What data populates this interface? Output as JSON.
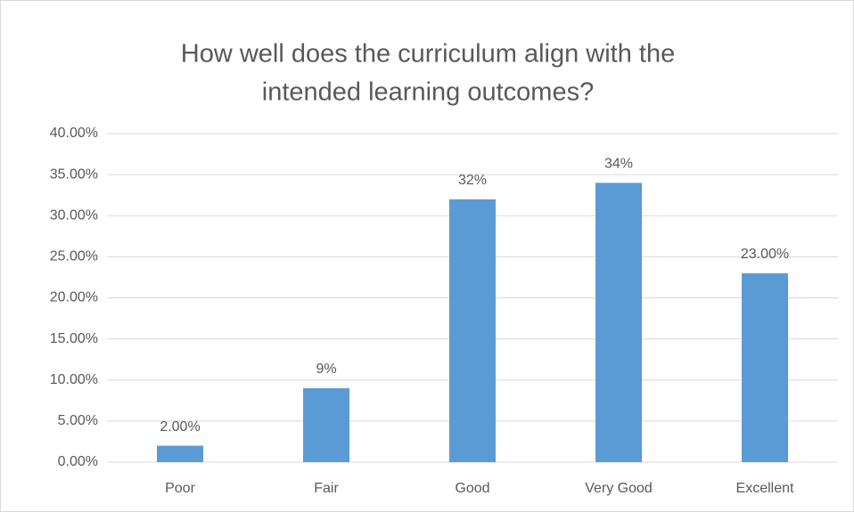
{
  "chart_data": {
    "type": "bar",
    "title": [
      "How well does the curriculum align with the",
      "intended learning outcomes?"
    ],
    "categories": [
      "Poor",
      "Fair",
      "Good",
      "Very Good",
      "Excellent"
    ],
    "values": [
      2,
      9,
      32,
      34,
      23
    ],
    "value_labels": [
      "2.00%",
      "9%",
      "32%",
      "34%",
      "23.00%"
    ],
    "color": "#5b9bd5",
    "ylim": [
      0,
      40
    ],
    "yticks": [
      {
        "value": 0,
        "label": "0.00%"
      },
      {
        "value": 5,
        "label": "5.00%"
      },
      {
        "value": 10,
        "label": "10.00%"
      },
      {
        "value": 15,
        "label": "15.00%"
      },
      {
        "value": 20,
        "label": "20.00%"
      },
      {
        "value": 25,
        "label": "25.00%"
      },
      {
        "value": 30,
        "label": "30.00%"
      },
      {
        "value": 35,
        "label": "35.00%"
      },
      {
        "value": 40,
        "label": "40.00%"
      }
    ],
    "grid": true
  }
}
